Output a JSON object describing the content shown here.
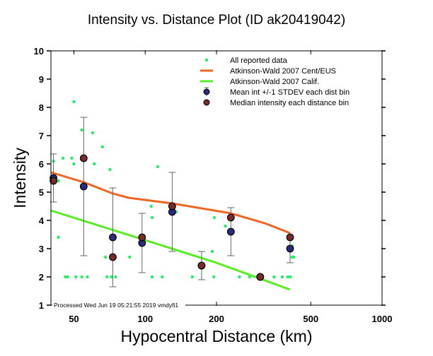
{
  "chart_data": {
    "type": "scatter",
    "title": "Intensity vs. Distance Plot (ID ak20419042)",
    "xlabel": "Hypocentral Distance (km)",
    "ylabel": "Intensity",
    "xscale": "log",
    "xlim": [
      40,
      1000
    ],
    "ylim": [
      1,
      10
    ],
    "xticks": [
      50,
      100,
      200,
      500,
      1000
    ],
    "xtick_labels": [
      "50",
      "100",
      "200",
      "500",
      "1000"
    ],
    "yticks": [
      1,
      2,
      3,
      4,
      5,
      6,
      7,
      8,
      9,
      10
    ],
    "ytick_labels": [
      "1",
      "2",
      "3",
      "4",
      "5",
      "6",
      "7",
      "8",
      "9",
      "10"
    ],
    "legend_position": "top-right",
    "annotation": "Processed Wed Jun 19 05:21:55 2019 vmdyfi1",
    "legend": [
      "All reported data",
      "Atkinson-Wald 2007 Cent/EUS",
      "Atkinson-Wald 2007 Calif.",
      "Mean int +/-1 STDEV each dist bin",
      "Median intensity each distance bin"
    ],
    "colors": {
      "reported": "#22ee66",
      "cent_eus": "#ee6622",
      "calif": "#55ee22",
      "mean": "#2a2a80",
      "median": "#7a2a2a",
      "errorbar": "#666666"
    },
    "series": [
      {
        "name": "All reported data",
        "points": [
          [
            41,
            6.1
          ],
          [
            43,
            5.4
          ],
          [
            43,
            3.4
          ],
          [
            45,
            6.2
          ],
          [
            49,
            6.2
          ],
          [
            50,
            6.0
          ],
          [
            50,
            8.2
          ],
          [
            54,
            7.2
          ],
          [
            60,
            7.1
          ],
          [
            66,
            6.6
          ],
          [
            61,
            6.0
          ],
          [
            71,
            5.8
          ],
          [
            68,
            2.7
          ],
          [
            86,
            2.7
          ],
          [
            113,
            5.9
          ],
          [
            106,
            4.5
          ],
          [
            107,
            4.1
          ],
          [
            135,
            4.3
          ],
          [
            158,
            2.0
          ],
          [
            196,
            4.1
          ],
          [
            218,
            3.8
          ],
          [
            192,
            2.9
          ],
          [
            46,
            2.0
          ],
          [
            47,
            2.0
          ],
          [
            51,
            2.0
          ],
          [
            54,
            2.0
          ],
          [
            57,
            2.0
          ],
          [
            69,
            2.0
          ],
          [
            72,
            2.0
          ],
          [
            75,
            2.0
          ],
          [
            107,
            2.0
          ],
          [
            118,
            2.0
          ],
          [
            195,
            2.0
          ],
          [
            250,
            2.0
          ],
          [
            276,
            2.0
          ],
          [
            298,
            2.0
          ],
          [
            350,
            2.0
          ],
          [
            379,
            2.0
          ],
          [
            400,
            2.0
          ],
          [
            410,
            2.0
          ],
          [
            417,
            2.7
          ],
          [
            424,
            2.7
          ],
          [
            417,
            3.1
          ]
        ]
      },
      {
        "name": "Atkinson-Wald 2007 Cent/EUS",
        "points": [
          [
            40,
            5.7
          ],
          [
            55,
            5.35
          ],
          [
            73,
            4.95
          ],
          [
            85,
            4.8
          ],
          [
            130,
            4.6
          ],
          [
            230,
            4.25
          ],
          [
            320,
            3.9
          ],
          [
            409,
            3.55
          ]
        ]
      },
      {
        "name": "Atkinson-Wald 2007 Calif.",
        "points": [
          [
            40,
            4.35
          ],
          [
            100,
            3.3
          ],
          [
            200,
            2.5
          ],
          [
            409,
            1.55
          ]
        ]
      },
      {
        "name": "Mean int +/-1 STDEV each dist bin",
        "points": [
          {
            "x": 41,
            "y": 5.5,
            "lo": 4.65,
            "hi": 6.35
          },
          {
            "x": 55,
            "y": 5.2,
            "lo": 2.75,
            "hi": 7.65
          },
          {
            "x": 73,
            "y": 3.4,
            "lo": 1.65,
            "hi": 5.15
          },
          {
            "x": 97,
            "y": 3.2,
            "lo": 2.15,
            "hi": 4.25
          },
          {
            "x": 130,
            "y": 4.3,
            "lo": 2.9,
            "hi": 5.7
          },
          {
            "x": 173,
            "y": 2.4,
            "lo": 1.9,
            "hi": 2.9
          },
          {
            "x": 230,
            "y": 3.6,
            "lo": 2.75,
            "hi": 4.45
          },
          {
            "x": 306,
            "y": 2.0,
            "lo": 2.0,
            "hi": 2.0
          },
          {
            "x": 409,
            "y": 3.0,
            "lo": 2.5,
            "hi": 3.45
          }
        ]
      },
      {
        "name": "Median intensity each distance bin",
        "points": [
          [
            41,
            5.4
          ],
          [
            55,
            6.2
          ],
          [
            73,
            2.7
          ],
          [
            97,
            3.4
          ],
          [
            130,
            4.5
          ],
          [
            173,
            2.4
          ],
          [
            230,
            4.1
          ],
          [
            306,
            2.0
          ],
          [
            409,
            3.4
          ]
        ]
      }
    ]
  }
}
